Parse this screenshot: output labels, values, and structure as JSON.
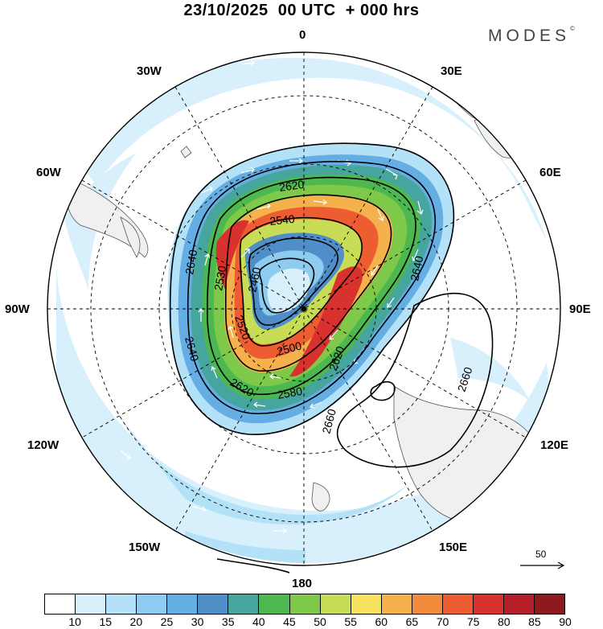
{
  "title": "23/10/2025  00 UTC  + 000 hrs",
  "brand": "MODES",
  "brand_mark": "©",
  "longitude_labels": {
    "n0": "0",
    "e30": "30E",
    "e60": "60E",
    "e90": "90E",
    "e120": "120E",
    "e150": "150E",
    "s180": "180",
    "w150": "150W",
    "w120": "120W",
    "w90": "90W",
    "w60": "60W",
    "w30": "30W"
  },
  "contour_labels": [
    "2620",
    "2540",
    "2460",
    "2530",
    "2640",
    "2640",
    "2660",
    "2640",
    "2620",
    "2580",
    "2520",
    "2500",
    "2620",
    "2660"
  ],
  "colorbar": {
    "ticks": [
      "10",
      "15",
      "20",
      "25",
      "30",
      "35",
      "40",
      "45",
      "50",
      "55",
      "60",
      "65",
      "70",
      "75",
      "80",
      "85",
      "90"
    ],
    "colors": [
      "#ffffff",
      "#d7f0fc",
      "#b3e2f8",
      "#8ecbf0",
      "#64aee4",
      "#4f8ec9",
      "#46a59c",
      "#4cb84f",
      "#7fc94a",
      "#c6dd55",
      "#f6e25d",
      "#f5b24c",
      "#f28a3e",
      "#ee5c32",
      "#d9312e",
      "#b51f2a",
      "#8f1a1d"
    ]
  },
  "reference_vector": "50",
  "icons": {
    "pole": "pole-dot-icon",
    "arrow": "reference-arrow-icon"
  }
}
